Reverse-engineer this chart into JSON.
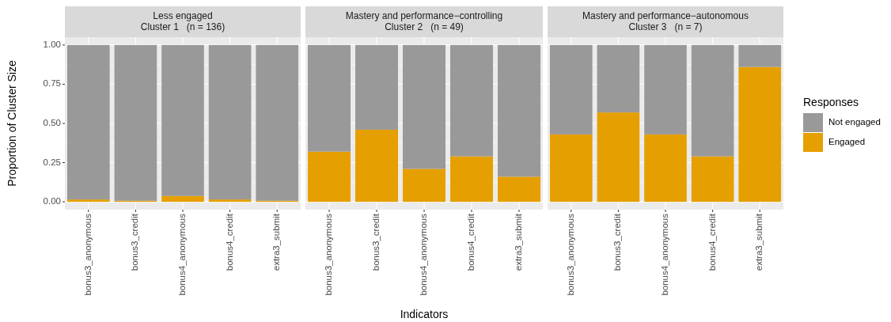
{
  "chart_data": [
    {
      "type": "bar",
      "title": "Less engaged\nCluster 1   (n = 136)",
      "ylabel": "Proportion of Cluster Size",
      "categories": [
        "bonus3_anonymous",
        "bonus3_credit",
        "bonus4_anonymous",
        "bonus4_credit",
        "extra3_submit"
      ],
      "stacked": true,
      "ylim": [
        -0.05,
        1.05
      ],
      "yticks": [
        {
          "value": 0,
          "label": "0.00"
        },
        {
          "value": 0.25,
          "label": "0.25"
        },
        {
          "value": 0.5,
          "label": "0.50"
        },
        {
          "value": 0.75,
          "label": "0.75"
        },
        {
          "value": 1,
          "label": "1.00"
        }
      ],
      "grid": true,
      "legend": false,
      "series": [
        {
          "color": "#e69f00",
          "values": [
            0.015,
            0.007,
            0.037,
            0.015,
            0.007
          ]
        },
        {
          "color": "#999999",
          "values": [
            0.985,
            0.993,
            0.963,
            0.985,
            0.993
          ]
        }
      ]
    },
    {
      "type": "bar",
      "title": "Mastery and performance−controlling\nCluster 2   (n = 49)",
      "xlabel": "Indicators",
      "categories": [
        "bonus3_anonymous",
        "bonus3_credit",
        "bonus4_anonymous",
        "bonus4_credit",
        "extra3_submit"
      ],
      "stacked": true,
      "ylim": [
        -0.05,
        1.05
      ],
      "tick_labels": "x",
      "grid": true,
      "legend": false,
      "series": [
        {
          "color": "#e69f00",
          "values": [
            0.32,
            0.46,
            0.21,
            0.29,
            0.16
          ]
        },
        {
          "color": "#999999",
          "values": [
            0.68,
            0.54,
            0.79,
            0.71,
            0.84
          ]
        }
      ]
    },
    {
      "type": "bar",
      "title": "Mastery and performance−autonomous\nCluster 3   (n = 7)",
      "categories": [
        "bonus3_anonymous",
        "bonus3_credit",
        "bonus4_anonymous",
        "bonus4_credit",
        "extra3_submit"
      ],
      "stacked": true,
      "ylim": [
        -0.05,
        1.05
      ],
      "tick_labels": "x",
      "grid": true,
      "legend": "right",
      "legend_title": "Responses",
      "series": [
        {
          "name": "Engaged",
          "color": "#e69f00",
          "values": [
            0.43,
            0.57,
            0.43,
            0.29,
            0.86
          ]
        },
        {
          "name": "Not engaged",
          "color": "#999999",
          "values": [
            0.57,
            0.43,
            0.57,
            0.71,
            0.14
          ]
        }
      ]
    }
  ]
}
